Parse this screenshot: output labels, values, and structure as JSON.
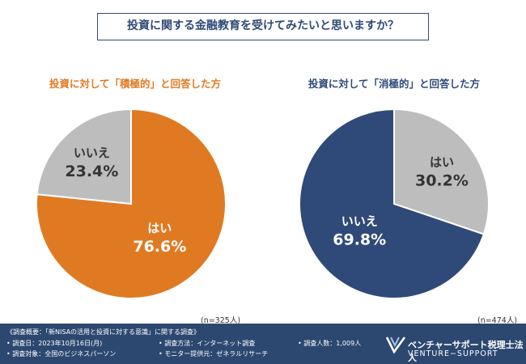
{
  "title": "投資に関する金融教育を受けてみたいと思いますか？",
  "chart_data": [
    {
      "type": "pie",
      "title": "投資に対して「積極的」と回答した方",
      "sample_size": "(n=325人)",
      "slices": [
        {
          "label": "はい",
          "value": 76.6,
          "value_label": "76.6%",
          "color": "#e07a22"
        },
        {
          "label": "いいえ",
          "value": 23.4,
          "value_label": "23.4%",
          "color": "#bdbdbd"
        }
      ]
    },
    {
      "type": "pie",
      "title": "投資に対して「消極的」と回答した方",
      "sample_size": "(n=474人)",
      "slices": [
        {
          "label": "はい",
          "value": 30.2,
          "value_label": "30.2%",
          "color": "#bdbdbd"
        },
        {
          "label": "いいえ",
          "value": 69.8,
          "value_label": "69.8%",
          "color": "#2f4a78"
        }
      ]
    }
  ],
  "footer": {
    "overview": "《調査概要：「新NISAの活用と投資に対する意識」に関する調査》",
    "date": "• 調査日：2023年10月16日(月)",
    "target": "• 調査対象：全国のビジネスパーソン",
    "method": "• 調査方法：インターネット調査",
    "provider": "• モニター提供元：ゼネラルリサーチ",
    "count": "• 調査人数：1,009人",
    "brand_jp": "ベンチャーサポート税理士法人",
    "brand_en": "VENTURE−SUPPORT"
  }
}
